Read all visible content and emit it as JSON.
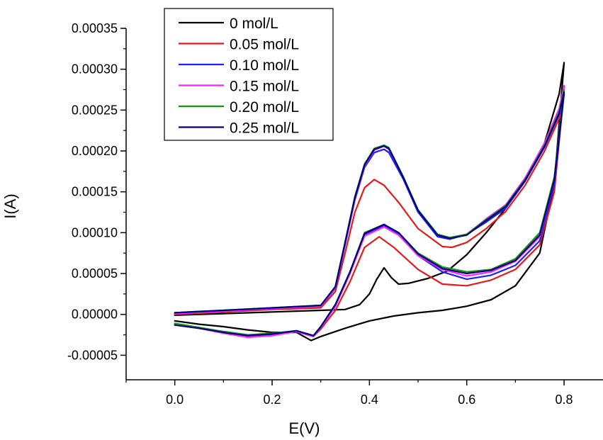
{
  "chart_data": {
    "type": "line",
    "title": "",
    "xlabel": "E(V)",
    "ylabel": "I(A)",
    "xlim": [
      -0.1,
      0.88
    ],
    "ylim": [
      -8e-05,
      0.00035
    ],
    "x_ticks": [
      "0.0",
      "0.2",
      "0.4",
      "0.6",
      "0.8"
    ],
    "x_tick_values": [
      0.0,
      0.2,
      0.4,
      0.6,
      0.8
    ],
    "y_ticks": [
      "-0.00005",
      "0.00000",
      "0.00005",
      "0.00010",
      "0.00015",
      "0.00020",
      "0.00025",
      "0.00030",
      "0.00035"
    ],
    "y_tick_values": [
      -5e-05,
      0.0,
      5e-05,
      0.0001,
      0.00015,
      0.0002,
      0.00025,
      0.0003,
      0.00035
    ],
    "grid": false,
    "legend_position": "top-left",
    "series": [
      {
        "name": "0 mol/L",
        "color": "#000000",
        "x": [
          0.0,
          0.05,
          0.1,
          0.15,
          0.2,
          0.25,
          0.28,
          0.3,
          0.35,
          0.4,
          0.45,
          0.5,
          0.55,
          0.6,
          0.65,
          0.7,
          0.75,
          0.78,
          0.8,
          0.79,
          0.76,
          0.72,
          0.68,
          0.64,
          0.6,
          0.56,
          0.52,
          0.48,
          0.46,
          0.445,
          0.43,
          0.415,
          0.4,
          0.38,
          0.35,
          0.3,
          0.2,
          0.1,
          0.0
        ],
        "y": [
          -8e-06,
          -1.2e-05,
          -1.5e-05,
          -1.9e-05,
          -2.2e-05,
          -2.2e-05,
          -3.2e-05,
          -2.7e-05,
          -1.7e-05,
          -8e-06,
          -2e-06,
          2e-06,
          5e-06,
          1e-05,
          1.8e-05,
          3.5e-05,
          7.5e-05,
          0.00016,
          0.000308,
          0.00027,
          0.00021,
          0.000165,
          0.00013,
          0.0001,
          7.3e-05,
          5.3e-05,
          4.4e-05,
          3.8e-05,
          3.7e-05,
          4.5e-05,
          5.7e-05,
          4.3e-05,
          2.5e-05,
          1.2e-05,
          6e-06,
          5e-06,
          3e-06,
          1e-06,
          -1e-06
        ]
      },
      {
        "name": "0.05 mol/L",
        "color": "#e41a1c",
        "x": [
          0.0,
          0.05,
          0.1,
          0.15,
          0.2,
          0.25,
          0.285,
          0.3,
          0.33,
          0.36,
          0.39,
          0.42,
          0.45,
          0.5,
          0.55,
          0.6,
          0.65,
          0.7,
          0.75,
          0.78,
          0.8,
          0.79,
          0.76,
          0.72,
          0.68,
          0.64,
          0.6,
          0.57,
          0.55,
          0.5,
          0.46,
          0.43,
          0.41,
          0.39,
          0.37,
          0.35,
          0.33,
          0.3,
          0.2,
          0.1,
          0.0
        ],
        "y": [
          -1.2e-05,
          -1.6e-05,
          -2.2e-05,
          -2.7e-05,
          -2.5e-05,
          -2.1e-05,
          -2.7e-05,
          -1.8e-05,
          5e-06,
          4e-05,
          8.2e-05,
          9.5e-05,
          8.2e-05,
          5.5e-05,
          3.7e-05,
          3.5e-05,
          4.2e-05,
          5.5e-05,
          8.5e-05,
          0.00015,
          0.000275,
          0.00024,
          0.0002,
          0.000158,
          0.000126,
          0.000105,
          8.8e-05,
          8.2e-05,
          8.3e-05,
          0.000105,
          0.000137,
          0.000158,
          0.000165,
          0.000155,
          0.000125,
          7.5e-05,
          2.8e-05,
          8e-06,
          6e-06,
          3e-06,
          0.0
        ]
      },
      {
        "name": "0.10 mol/L",
        "color": "#1f1fff",
        "x": [
          0.0,
          0.05,
          0.1,
          0.15,
          0.2,
          0.25,
          0.285,
          0.3,
          0.33,
          0.36,
          0.39,
          0.43,
          0.46,
          0.5,
          0.55,
          0.6,
          0.65,
          0.7,
          0.75,
          0.78,
          0.8,
          0.79,
          0.76,
          0.72,
          0.68,
          0.64,
          0.6,
          0.565,
          0.54,
          0.5,
          0.47,
          0.44,
          0.43,
          0.41,
          0.39,
          0.37,
          0.35,
          0.33,
          0.3,
          0.2,
          0.1,
          0.0
        ],
        "y": [
          -1.3e-05,
          -1.7e-05,
          -2.2e-05,
          -2.7e-05,
          -2.5e-05,
          -2.1e-05,
          -2.7e-05,
          -1.6e-05,
          1e-05,
          5e-05,
          9.8e-05,
          0.000108,
          9.8e-05,
          7.2e-05,
          5.2e-05,
          4.3e-05,
          4.8e-05,
          6e-05,
          9e-05,
          0.00016,
          0.00027,
          0.000245,
          0.000205,
          0.000163,
          0.00013,
          0.000113,
          9.8e-05,
          9.2e-05,
          9.5e-05,
          0.000125,
          0.000165,
          0.000198,
          0.000202,
          0.000198,
          0.00018,
          0.00014,
          8.5e-05,
          3.2e-05,
          1e-05,
          7e-06,
          4e-06,
          1e-06
        ]
      },
      {
        "name": "0.15 mol/L",
        "color": "#ff22ff",
        "x": [
          0.0,
          0.05,
          0.1,
          0.15,
          0.2,
          0.25,
          0.285,
          0.3,
          0.33,
          0.36,
          0.39,
          0.43,
          0.46,
          0.5,
          0.55,
          0.6,
          0.65,
          0.7,
          0.75,
          0.78,
          0.8,
          0.79,
          0.76,
          0.72,
          0.68,
          0.64,
          0.6,
          0.565,
          0.54,
          0.5,
          0.47,
          0.44,
          0.43,
          0.41,
          0.39,
          0.37,
          0.35,
          0.33,
          0.3,
          0.2,
          0.1,
          0.0
        ],
        "y": [
          -1.2e-05,
          -1.7e-05,
          -2.3e-05,
          -2.8e-05,
          -2.6e-05,
          -2.1e-05,
          -2.7e-05,
          -1.6e-05,
          1e-05,
          5e-05,
          9.6e-05,
          0.000107,
          9.7e-05,
          7.2e-05,
          5.5e-05,
          4.7e-05,
          5.2e-05,
          6.5e-05,
          9.5e-05,
          0.000165,
          0.00028,
          0.000252,
          0.00021,
          0.000167,
          0.000134,
          0.000117,
          9.8e-05,
          9.3e-05,
          9.7e-05,
          0.000127,
          0.000167,
          0.000202,
          0.000206,
          0.000201,
          0.000182,
          0.000142,
          8.7e-05,
          3.3e-05,
          1e-05,
          7e-06,
          4e-06,
          1e-06
        ]
      },
      {
        "name": "0.20 mol/L",
        "color": "#119911",
        "x": [
          0.0,
          0.05,
          0.1,
          0.15,
          0.2,
          0.25,
          0.285,
          0.3,
          0.33,
          0.36,
          0.39,
          0.43,
          0.46,
          0.5,
          0.55,
          0.6,
          0.65,
          0.7,
          0.75,
          0.78,
          0.8,
          0.79,
          0.76,
          0.72,
          0.68,
          0.64,
          0.6,
          0.565,
          0.54,
          0.5,
          0.47,
          0.44,
          0.43,
          0.41,
          0.39,
          0.37,
          0.35,
          0.33,
          0.3,
          0.2,
          0.1,
          0.0
        ],
        "y": [
          -1.1e-05,
          -1.6e-05,
          -2.1e-05,
          -2.5e-05,
          -2.3e-05,
          -2e-05,
          -2.6e-05,
          -1.5e-05,
          1.2e-05,
          5.2e-05,
          0.0001,
          0.00011,
          0.0001,
          7.5e-05,
          5.8e-05,
          5.2e-05,
          5.5e-05,
          6.8e-05,
          0.0001,
          0.000168,
          0.000275,
          0.000248,
          0.000207,
          0.000165,
          0.000133,
          0.000116,
          9.8e-05,
          9.4e-05,
          9.8e-05,
          0.000128,
          0.000168,
          0.000204,
          0.000207,
          0.000203,
          0.000184,
          0.000144,
          8.8e-05,
          3.4e-05,
          1.1e-05,
          8e-06,
          5e-06,
          2e-06
        ]
      },
      {
        "name": "0.25 mol/L",
        "color": "#00007f",
        "x": [
          0.0,
          0.05,
          0.1,
          0.15,
          0.2,
          0.25,
          0.285,
          0.3,
          0.33,
          0.36,
          0.39,
          0.43,
          0.46,
          0.5,
          0.55,
          0.6,
          0.65,
          0.7,
          0.75,
          0.78,
          0.8,
          0.79,
          0.76,
          0.72,
          0.68,
          0.64,
          0.6,
          0.565,
          0.54,
          0.5,
          0.47,
          0.44,
          0.43,
          0.41,
          0.39,
          0.37,
          0.35,
          0.33,
          0.3,
          0.2,
          0.1,
          0.0
        ],
        "y": [
          -1.3e-05,
          -1.7e-05,
          -2.2e-05,
          -2.6e-05,
          -2.4e-05,
          -2e-05,
          -2.6e-05,
          -1.5e-05,
          1.2e-05,
          5.2e-05,
          9.9e-05,
          0.00011,
          0.0001,
          7.4e-05,
          5.6e-05,
          5e-05,
          5.4e-05,
          6.6e-05,
          9.7e-05,
          0.000165,
          0.000272,
          0.000246,
          0.000206,
          0.000164,
          0.000132,
          0.000115,
          9.7e-05,
          9.3e-05,
          9.7e-05,
          0.000127,
          0.000167,
          0.000203,
          0.000206,
          0.000202,
          0.000183,
          0.000143,
          8.8e-05,
          3.4e-05,
          1.1e-05,
          8e-06,
          5e-06,
          2e-06
        ]
      }
    ]
  }
}
